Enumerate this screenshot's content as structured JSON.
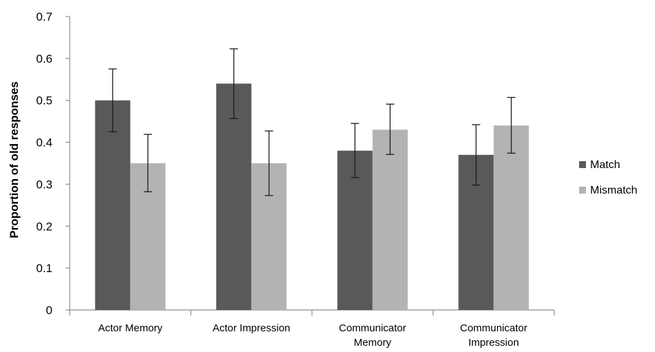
{
  "chart_data": {
    "type": "bar",
    "ylabel": "Proportion of old responses",
    "ylim": [
      0,
      0.7
    ],
    "yticks": [
      "0",
      "0.1",
      "0.2",
      "0.3",
      "0.4",
      "0.5",
      "0.6",
      "0.7"
    ],
    "grid": false,
    "legend_position": "right",
    "categories": [
      [
        "Actor Memory"
      ],
      [
        "Actor Impression"
      ],
      [
        "Communicator",
        "Memory"
      ],
      [
        "Communicator",
        "Impression"
      ]
    ],
    "series": [
      {
        "name": "Match",
        "color": "#595959",
        "values": [
          0.5,
          0.54,
          0.38,
          0.37
        ],
        "error_low": [
          0.425,
          0.457,
          0.316,
          0.298
        ],
        "error_high": [
          0.575,
          0.623,
          0.445,
          0.442
        ]
      },
      {
        "name": "Mismatch",
        "color": "#b3b3b3",
        "values": [
          0.35,
          0.35,
          0.43,
          0.44
        ],
        "error_low": [
          0.282,
          0.273,
          0.371,
          0.374
        ],
        "error_high": [
          0.419,
          0.427,
          0.491,
          0.507
        ]
      }
    ]
  }
}
